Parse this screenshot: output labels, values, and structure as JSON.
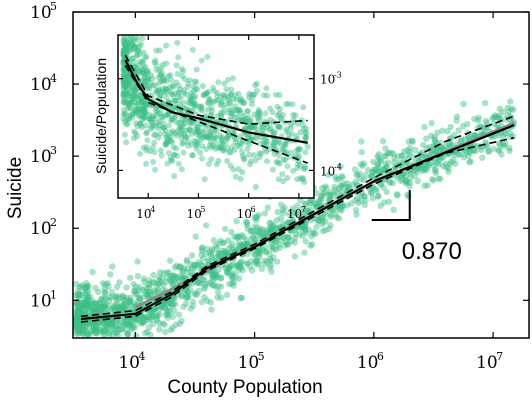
{
  "chart_data": [
    {
      "type": "scatter",
      "xlabel": "County Population",
      "ylabel": "Suicide",
      "xscale": "log",
      "yscale": "log",
      "xlim": [
        3000,
        20000000
      ],
      "ylim": [
        3,
        100000
      ],
      "xticks": [
        {
          "base": "10",
          "exp": "4",
          "value": 10000
        },
        {
          "base": "10",
          "exp": "5",
          "value": 100000
        },
        {
          "base": "10",
          "exp": "6",
          "value": 1000000
        },
        {
          "base": "10",
          "exp": "7",
          "value": 10000000
        }
      ],
      "yticks": [
        {
          "base": "10",
          "exp": "1",
          "value": 10
        },
        {
          "base": "10",
          "exp": "2",
          "value": 100
        },
        {
          "base": "10",
          "exp": "3",
          "value": 1000
        },
        {
          "base": "10",
          "exp": "4",
          "value": 10000
        },
        {
          "base": "10",
          "exp": "5",
          "value": 100000
        }
      ],
      "scatter_color": "#3dbf85",
      "series": [
        {
          "style": "solid-gray",
          "x": [
            10000,
            30000,
            100000,
            1000000,
            15000000
          ],
          "y": [
            8,
            20,
            57,
            440,
            2900
          ]
        },
        {
          "style": "solid-black",
          "x": [
            3500,
            10000,
            20000,
            40000,
            100000,
            1000000,
            15000000
          ],
          "y": [
            5.5,
            6.5,
            12,
            28,
            55,
            450,
            2700
          ]
        },
        {
          "style": "dashed-upper",
          "x": [
            3500,
            10000,
            20000,
            40000,
            100000,
            1000000,
            4000000,
            15000000
          ],
          "y": [
            6,
            7.2,
            13,
            30,
            60,
            500,
            1600,
            3600
          ]
        },
        {
          "style": "dashed-lower",
          "x": [
            3500,
            10000,
            20000,
            40000,
            100000,
            1000000,
            4000000,
            15000000
          ],
          "y": [
            5,
            6,
            11,
            26,
            52,
            410,
            1100,
            1800
          ]
        }
      ],
      "annotation": {
        "text": "0.870",
        "x": 2000000,
        "y": 130
      }
    },
    {
      "type": "scatter",
      "inset": true,
      "xlabel": "",
      "ylabel": "Suicide/Population",
      "xscale": "log",
      "yscale": "log",
      "xlim": [
        2500,
        20000000
      ],
      "ylim": [
        5e-05,
        0.003
      ],
      "xticks": [
        {
          "base": "10",
          "exp": "4",
          "value": 10000
        },
        {
          "base": "10",
          "exp": "5",
          "value": 100000
        },
        {
          "base": "10",
          "exp": "6",
          "value": 1000000
        },
        {
          "base": "10",
          "exp": "7",
          "value": 10000000
        }
      ],
      "yticks": [
        {
          "base": "10",
          "exp": "-3",
          "value": 0.001
        },
        {
          "base": "10",
          "exp": "-4",
          "value": 0.0001
        }
      ],
      "scatter_color": "#3dbf85",
      "series": [
        {
          "style": "solid-black",
          "x": [
            3500,
            6000,
            10000,
            30000,
            100000,
            1000000,
            15000000
          ],
          "y": [
            0.0016,
            0.0009,
            0.0006,
            0.00043,
            0.00037,
            0.00026,
            0.0002
          ]
        },
        {
          "style": "dashed-upper",
          "x": [
            3500,
            10000,
            100000,
            1000000,
            15000000
          ],
          "y": [
            0.0018,
            0.00065,
            0.0004,
            0.00032,
            0.00035
          ]
        },
        {
          "style": "dashed-lower",
          "x": [
            3500,
            10000,
            100000,
            1000000,
            15000000
          ],
          "y": [
            0.0014,
            0.00055,
            0.00034,
            0.00021,
            0.00012
          ]
        }
      ]
    }
  ]
}
